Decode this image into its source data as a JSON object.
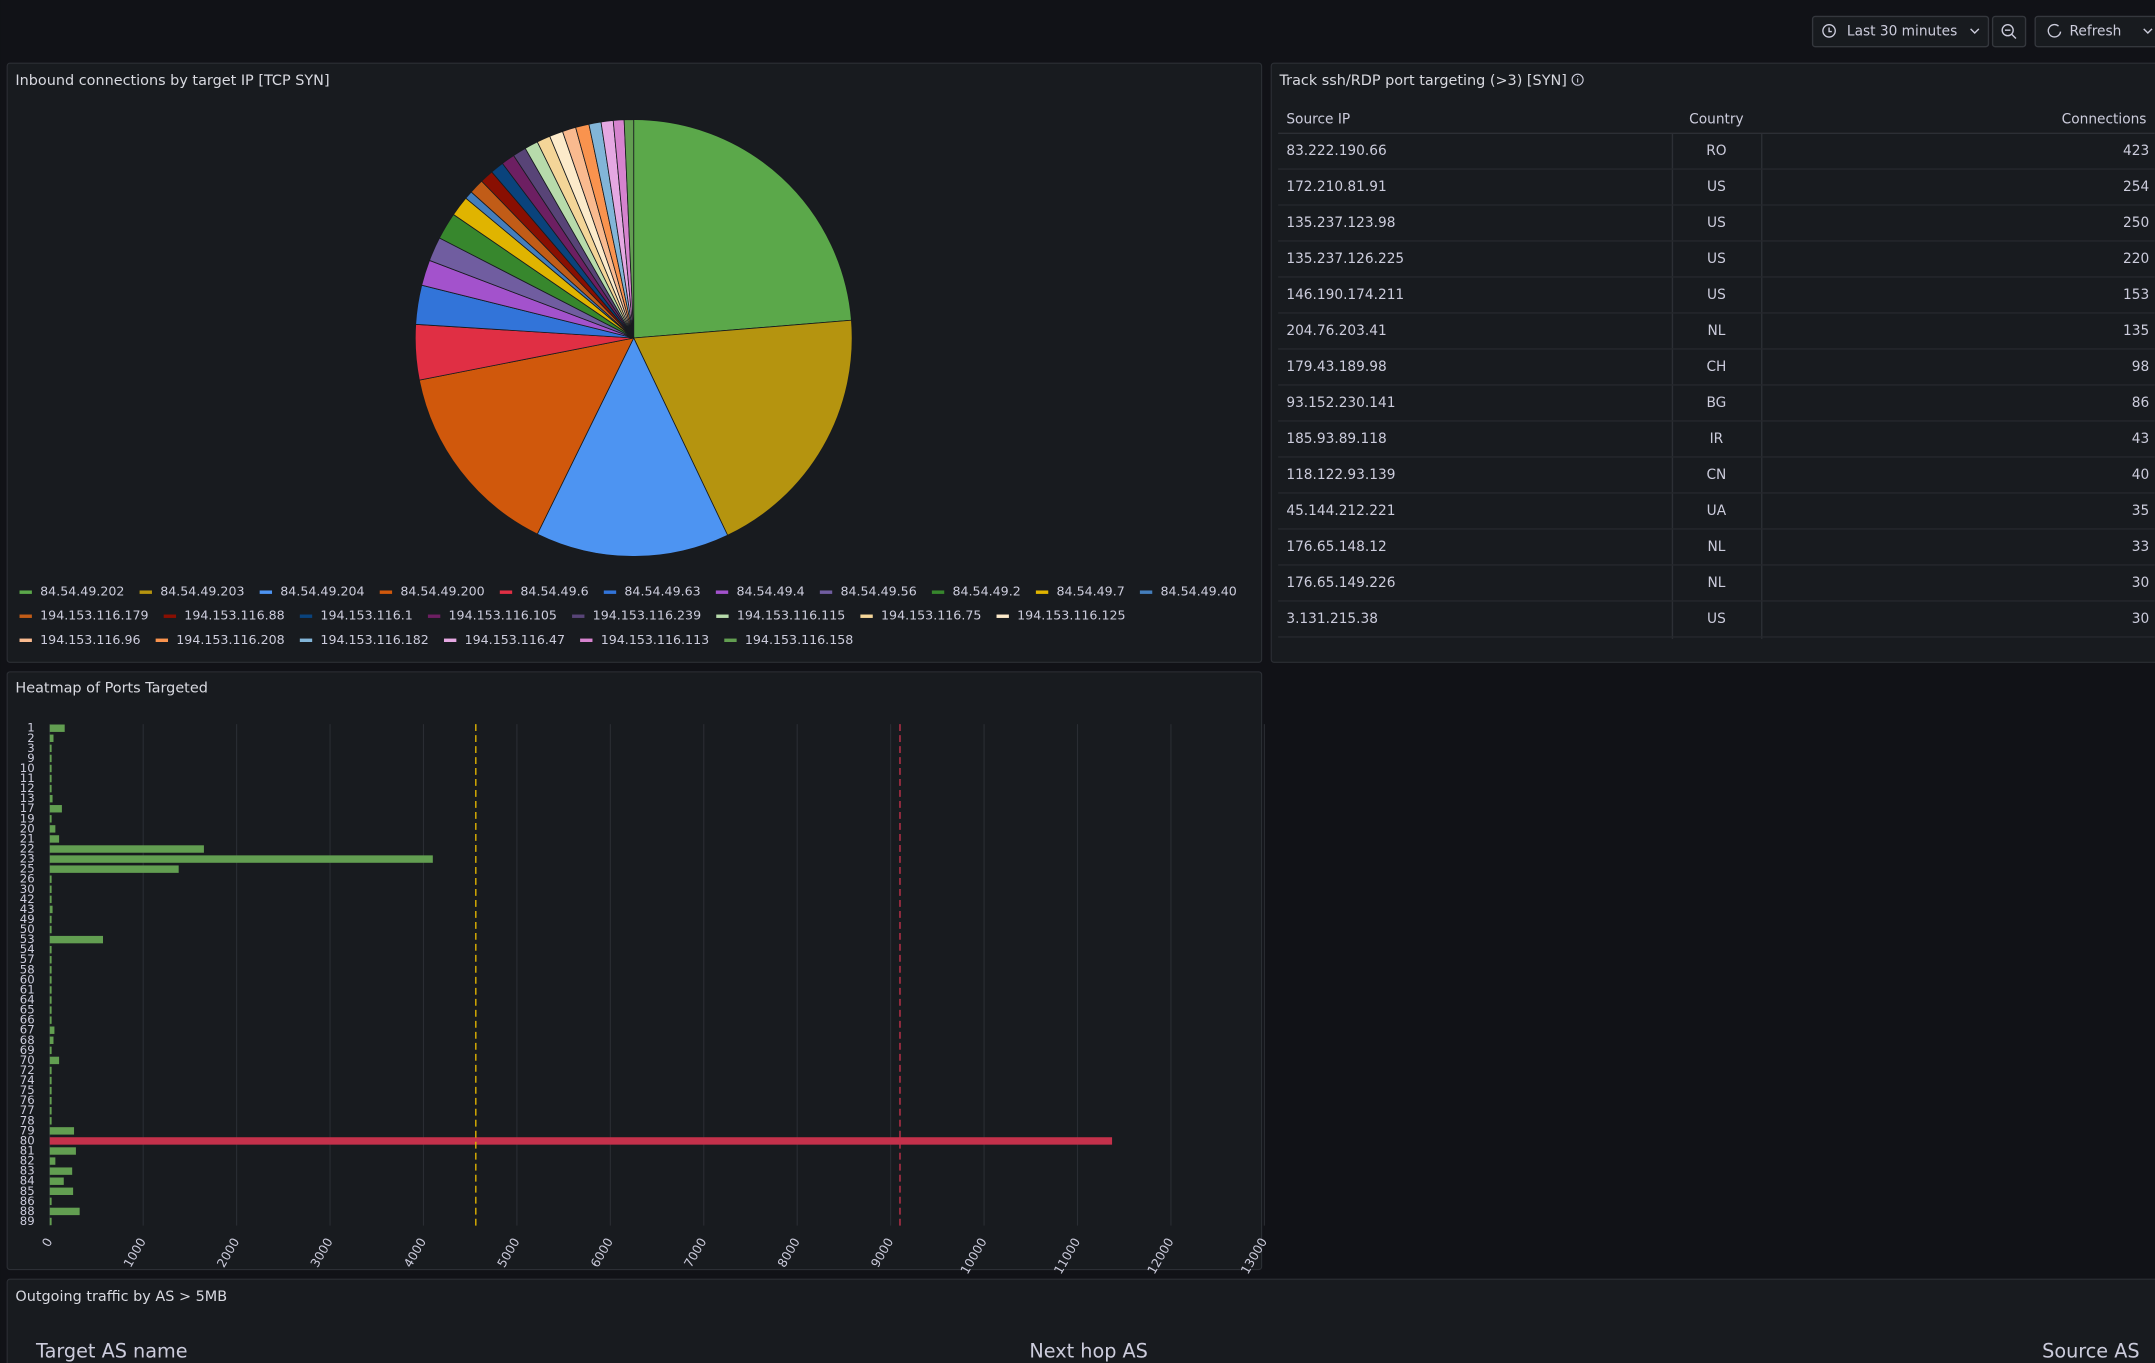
{
  "toolbar": {
    "time_range": "Last 30 minutes",
    "refresh": "Refresh"
  },
  "chart_data": [
    {
      "type": "pie",
      "title": "Inbound connections by target IP [TCP SYN]",
      "categories": [
        "84.54.49.202",
        "84.54.49.203",
        "84.54.49.204",
        "84.54.49.200",
        "84.54.49.6",
        "84.54.49.63",
        "84.54.49.4",
        "84.54.49.56",
        "84.54.49.2",
        "84.54.49.7",
        "84.54.49.40",
        "194.153.116.179",
        "194.153.116.88",
        "194.153.116.1",
        "194.153.116.105",
        "194.153.116.239",
        "194.153.116.115",
        "194.153.116.75",
        "194.153.116.125",
        "194.153.116.96",
        "194.153.116.208",
        "194.153.116.182",
        "194.153.116.47",
        "194.153.116.113",
        "194.153.116.158"
      ],
      "values": [
        23.8,
        19.3,
        14.4,
        14.7,
        4.1,
        2.9,
        1.9,
        1.8,
        2.0,
        1.5,
        0.6,
        1.1,
        1.0,
        1.0,
        1.0,
        1.0,
        1.0,
        1.0,
        1.0,
        1.0,
        1.0,
        0.9,
        0.9,
        0.8,
        0.7
      ],
      "colors": [
        "#5ba84a",
        "#b5940f",
        "#4d94f2",
        "#d0580c",
        "#e02f44",
        "#3274d9",
        "#a352cc",
        "#705da0",
        "#37872d",
        "#e0b400",
        "#447ebc",
        "#c15c17",
        "#890f02",
        "#0a437c",
        "#6d1f62",
        "#584477",
        "#b7dbab",
        "#f4d598",
        "#fceaca",
        "#f9ba8f",
        "#f9934e",
        "#82b5d8",
        "#e5a8e2",
        "#d683ce",
        "#629e51"
      ],
      "legend": "bottom"
    },
    {
      "type": "bar",
      "orientation": "horizontal",
      "title": "Heatmap of Ports Targeted",
      "categories": [
        "1",
        "2",
        "3",
        "9",
        "10",
        "11",
        "12",
        "13",
        "17",
        "19",
        "20",
        "21",
        "22",
        "23",
        "25",
        "26",
        "30",
        "42",
        "43",
        "49",
        "50",
        "53",
        "54",
        "57",
        "58",
        "60",
        "61",
        "64",
        "65",
        "66",
        "67",
        "68",
        "69",
        "70",
        "72",
        "74",
        "75",
        "76",
        "77",
        "78",
        "79",
        "80",
        "81",
        "82",
        "83",
        "84",
        "85",
        "86",
        "88",
        "89"
      ],
      "values": [
        160,
        40,
        20,
        20,
        20,
        20,
        20,
        30,
        130,
        20,
        60,
        100,
        1650,
        4100,
        1380,
        20,
        20,
        20,
        30,
        20,
        20,
        570,
        20,
        20,
        20,
        20,
        20,
        20,
        20,
        20,
        50,
        40,
        20,
        100,
        20,
        20,
        20,
        20,
        20,
        20,
        260,
        11370,
        280,
        60,
        240,
        150,
        250,
        20,
        320,
        20
      ],
      "color": "#629e51",
      "thresholds": [
        {
          "value": 4560,
          "color": "#e0b400"
        },
        {
          "value": 9100,
          "color": "#c4314b"
        }
      ],
      "xlim": [
        0,
        13000
      ],
      "xticks": [
        0,
        1000,
        2000,
        3000,
        4000,
        5000,
        6000,
        7000,
        8000,
        9000,
        10000,
        11000,
        12000,
        13000
      ],
      "grid": true
    }
  ],
  "table": {
    "title": "Track ssh/RDP port targeting (>3) [SYN]",
    "columns": [
      "Source IP",
      "Country",
      "Connections"
    ],
    "rows": [
      [
        "83.222.190.66",
        "RO",
        423
      ],
      [
        "172.210.81.91",
        "US",
        254
      ],
      [
        "135.237.123.98",
        "US",
        250
      ],
      [
        "135.237.126.225",
        "US",
        220
      ],
      [
        "146.190.174.211",
        "US",
        153
      ],
      [
        "204.76.203.41",
        "NL",
        135
      ],
      [
        "179.43.189.98",
        "CH",
        98
      ],
      [
        "93.152.230.141",
        "BG",
        86
      ],
      [
        "185.93.89.118",
        "IR",
        43
      ],
      [
        "118.122.93.139",
        "CN",
        40
      ],
      [
        "45.144.212.221",
        "UA",
        35
      ],
      [
        "176.65.148.12",
        "NL",
        33
      ],
      [
        "176.65.149.226",
        "NL",
        30
      ],
      [
        "3.131.215.38",
        "US",
        30
      ]
    ]
  },
  "bottom_panel": {
    "title": "Outgoing traffic by AS > 5MB",
    "columns": [
      "Target AS name",
      "Next hop AS",
      "Source AS"
    ]
  }
}
